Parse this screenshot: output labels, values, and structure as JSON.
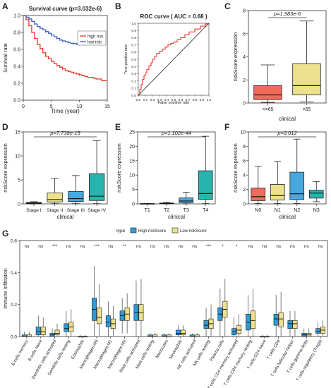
{
  "chart_data": [
    {
      "panel": "A",
      "type": "line",
      "title": "Survival curve (p=3.032e-6)",
      "xlabel": "Time (year)",
      "ylabel": "Survival rate",
      "xlim": [
        0,
        15
      ],
      "ylim": [
        0,
        1
      ],
      "xticks": [
        "0",
        "5",
        "10",
        "15"
      ],
      "yticks": [
        "0.0",
        "0.2",
        "0.4",
        "0.6",
        "0.8",
        "1.0"
      ],
      "legend": "top-right",
      "series": [
        {
          "name": "high risk",
          "color": "#e8392a",
          "x": [
            0,
            0.5,
            1,
            1.5,
            2,
            2.5,
            3,
            3.5,
            4,
            4.5,
            5,
            5.5,
            6,
            6.5,
            7,
            7.5,
            8,
            8.5,
            9,
            9.5,
            10,
            10.5,
            11,
            11.5,
            12,
            12.5,
            13,
            13.5,
            14,
            14.5,
            15
          ],
          "y": [
            1.0,
            0.95,
            0.88,
            0.8,
            0.73,
            0.66,
            0.61,
            0.56,
            0.52,
            0.49,
            0.46,
            0.43,
            0.41,
            0.39,
            0.37,
            0.35,
            0.34,
            0.33,
            0.32,
            0.31,
            0.3,
            0.29,
            0.28,
            0.27,
            0.27,
            0.26,
            0.25,
            0.25,
            0.23,
            0.23,
            0.23
          ]
        },
        {
          "name": "low risk",
          "color": "#3a5fbf",
          "x": [
            0,
            0.5,
            1,
            1.5,
            2,
            2.5,
            3,
            3.5,
            4,
            4.5,
            5,
            5.5,
            6,
            6.5,
            7,
            7.5,
            8,
            8.5,
            9,
            9.5,
            10
          ],
          "y": [
            1.0,
            0.98,
            0.96,
            0.93,
            0.9,
            0.87,
            0.85,
            0.83,
            0.81,
            0.79,
            0.77,
            0.75,
            0.73,
            0.71,
            0.7,
            0.69,
            0.68,
            0.67,
            0.67,
            0.66,
            0.66
          ]
        }
      ]
    },
    {
      "panel": "B",
      "type": "line",
      "title": "ROC curve ( AUC = 0.68 )",
      "xlabel": "False positive rate",
      "ylabel": "True positive rate",
      "xlim": [
        0,
        1
      ],
      "ylim": [
        0,
        1
      ],
      "xticks": [
        "0.0",
        "0.1",
        "0.2",
        "0.3",
        "0.4",
        "0.5",
        "0.6",
        "0.7",
        "0.8",
        "0.9",
        "1.0"
      ],
      "yticks": [
        "0.0",
        "0.1",
        "0.2",
        "0.3",
        "0.4",
        "0.5",
        "0.6",
        "0.7",
        "0.8",
        "0.9",
        "1.0"
      ],
      "series": [
        {
          "color": "#e8392a",
          "x": [
            0,
            0.02,
            0.04,
            0.06,
            0.08,
            0.1,
            0.12,
            0.15,
            0.18,
            0.2,
            0.23,
            0.26,
            0.3,
            0.34,
            0.38,
            0.42,
            0.46,
            0.5,
            0.55,
            0.6,
            0.66,
            0.72,
            0.8,
            0.88,
            0.95,
            1.0
          ],
          "y": [
            0,
            0.08,
            0.15,
            0.22,
            0.27,
            0.31,
            0.36,
            0.41,
            0.45,
            0.5,
            0.54,
            0.58,
            0.61,
            0.64,
            0.67,
            0.7,
            0.72,
            0.74,
            0.77,
            0.8,
            0.84,
            0.88,
            0.92,
            0.96,
            0.99,
            1.0
          ]
        },
        {
          "color": "#222222",
          "x": [
            0,
            1
          ],
          "y": [
            0,
            1
          ]
        }
      ]
    },
    {
      "panel": "C",
      "type": "box",
      "pvalue": "p=1.983e-6",
      "xlabel": "clinical",
      "ylabel": "riskScore expression",
      "ylim": [
        0,
        8
      ],
      "yticks": [
        "0",
        "2",
        "4",
        "6",
        "8"
      ],
      "categories": [
        "<=65",
        ">65"
      ],
      "colors": [
        "#f06b5c",
        "#ede18e"
      ],
      "boxes": [
        {
          "whislo": 0.05,
          "q1": 0.3,
          "med": 0.7,
          "q3": 1.5,
          "whishi": 3.3
        },
        {
          "whislo": 0.1,
          "q1": 0.7,
          "med": 1.5,
          "q3": 3.4,
          "whishi": 7.1
        }
      ]
    },
    {
      "panel": "D",
      "type": "box",
      "pvalue": "p=7.738e-15",
      "xlabel": "clinical",
      "ylabel": "riskScore expression",
      "ylim": [
        0,
        15
      ],
      "yticks": [
        "0",
        "5",
        "10",
        "15"
      ],
      "categories": [
        "Stage I",
        "Stage II",
        "Stage III",
        "Stage IV"
      ],
      "colors": [
        "#f06b5c",
        "#ede18e",
        "#49a7df",
        "#26b5ad"
      ],
      "boxes": [
        {
          "whislo": 0.0,
          "q1": 0.05,
          "med": 0.15,
          "q3": 0.3,
          "whishi": 0.45
        },
        {
          "whislo": 0.05,
          "q1": 0.4,
          "med": 0.9,
          "q3": 2.3,
          "whishi": 5.3
        },
        {
          "whislo": 0.05,
          "q1": 0.5,
          "med": 1.1,
          "q3": 2.6,
          "whishi": 5.9
        },
        {
          "whislo": 0.05,
          "q1": 0.7,
          "med": 1.6,
          "q3": 6.3,
          "whishi": 13.2
        }
      ]
    },
    {
      "panel": "E",
      "type": "box",
      "pvalue": "p=1.102e-44",
      "xlabel": "clinical",
      "ylabel": "riskScore expression",
      "ylim": [
        0,
        25
      ],
      "yticks": [
        "0",
        "5",
        "10",
        "15",
        "20",
        "25"
      ],
      "categories": [
        "T1",
        "T2",
        "T3",
        "T4"
      ],
      "colors": [
        "#f06b5c",
        "#ede18e",
        "#49a7df",
        "#26b5ad"
      ],
      "boxes": [
        {
          "whislo": 0.0,
          "q1": 0.02,
          "med": 0.05,
          "q3": 0.1,
          "whishi": 0.18
        },
        {
          "whislo": 0.0,
          "q1": 0.05,
          "med": 0.12,
          "q3": 0.3,
          "whishi": 0.55
        },
        {
          "whislo": 0.05,
          "q1": 0.4,
          "med": 1.0,
          "q3": 2.1,
          "whishi": 4.0
        },
        {
          "whislo": 0.1,
          "q1": 1.6,
          "med": 3.6,
          "q3": 11.5,
          "whishi": 23.5
        }
      ]
    },
    {
      "panel": "F",
      "type": "box",
      "pvalue": "p=0.012",
      "xlabel": "clinical",
      "ylabel": "riskScore expression",
      "ylim": [
        0,
        10
      ],
      "yticks": [
        "0",
        "2",
        "4",
        "6",
        "8",
        "10"
      ],
      "categories": [
        "N0",
        "N1",
        "N2",
        "N3"
      ],
      "colors": [
        "#f06b5c",
        "#ede18e",
        "#49a7df",
        "#26b5ad"
      ],
      "boxes": [
        {
          "whislo": 0.05,
          "q1": 0.45,
          "med": 1.0,
          "q3": 2.2,
          "whishi": 5.2
        },
        {
          "whislo": 0.05,
          "q1": 0.55,
          "med": 1.15,
          "q3": 2.7,
          "whishi": 5.9
        },
        {
          "whislo": 0.05,
          "q1": 0.6,
          "med": 1.4,
          "q3": 4.4,
          "whishi": 9.0
        },
        {
          "whislo": 0.3,
          "q1": 0.8,
          "med": 1.5,
          "q3": 1.9,
          "whishi": 3.1
        }
      ]
    },
    {
      "panel": "G",
      "type": "box",
      "ylabel": "Immune Infiltration",
      "ylim": [
        0,
        0.6
      ],
      "yticks": [
        "0.0",
        "0.2",
        "0.4",
        "0.6"
      ],
      "legend_title": "type",
      "series_names": [
        "High riskScore",
        "Low riskScore"
      ],
      "colors": [
        "#2f9ad6",
        "#ede18e"
      ],
      "categories": [
        "B cells memory",
        "B cells naive",
        "Dendritic cells activated",
        "Dendritic cells resting",
        "Eosinophils",
        "Macrophages M0",
        "Macrophages M1",
        "Macrophages M2",
        "Mast cells activated",
        "Mast cells resting",
        "Monocytes",
        "Neutrophils",
        "NK cells activated",
        "NK cells resting",
        "Plasma cells",
        "T cells CD4 memory activated",
        "T cells CD4 memory resting",
        "T cells CD4 naive",
        "T cells CD8",
        "T cells follicular helper",
        "T cells gamma delta",
        "T cells regulatory (Tregs)"
      ],
      "significance": [
        "ns",
        "ns",
        "***",
        "ns",
        "ns",
        "***",
        "ns",
        "**",
        "ns",
        "ns",
        "ns",
        "ns",
        "ns",
        "***",
        "*",
        "*",
        "ns",
        "ns",
        "ns",
        "ns",
        "ns",
        "ns"
      ],
      "boxes_high": [
        {
          "whislo": 0,
          "q1": 0.0,
          "med": 0.0,
          "q3": 0.01,
          "whishi": 0.03
        },
        {
          "whislo": 0,
          "q1": 0.01,
          "med": 0.03,
          "q3": 0.06,
          "whishi": 0.13
        },
        {
          "whislo": 0,
          "q1": 0.0,
          "med": 0.01,
          "q3": 0.02,
          "whishi": 0.05
        },
        {
          "whislo": 0,
          "q1": 0.03,
          "med": 0.05,
          "q3": 0.08,
          "whishi": 0.16
        },
        {
          "whislo": 0,
          "q1": 0.0,
          "med": 0.0,
          "q3": 0.0,
          "whishi": 0.01
        },
        {
          "whislo": 0,
          "q1": 0.1,
          "med": 0.17,
          "q3": 0.24,
          "whishi": 0.44
        },
        {
          "whislo": 0,
          "q1": 0.06,
          "med": 0.09,
          "q3": 0.13,
          "whishi": 0.22
        },
        {
          "whislo": 0.02,
          "q1": 0.1,
          "med": 0.13,
          "q3": 0.16,
          "whishi": 0.24
        },
        {
          "whislo": 0,
          "q1": 0.1,
          "med": 0.15,
          "q3": 0.2,
          "whishi": 0.35
        },
        {
          "whislo": 0,
          "q1": 0.0,
          "med": 0.0,
          "q3": 0.01,
          "whishi": 0.02
        },
        {
          "whislo": 0,
          "q1": 0.0,
          "med": 0.0,
          "q3": 0.01,
          "whishi": 0.02
        },
        {
          "whislo": 0,
          "q1": 0.01,
          "med": 0.02,
          "q3": 0.04,
          "whishi": 0.07
        },
        {
          "whislo": 0,
          "q1": 0.0,
          "med": 0.0,
          "q3": 0.01,
          "whishi": 0.02
        },
        {
          "whislo": 0,
          "q1": 0.05,
          "med": 0.07,
          "q3": 0.1,
          "whishi": 0.18
        },
        {
          "whislo": 0,
          "q1": 0.1,
          "med": 0.14,
          "q3": 0.18,
          "whishi": 0.3
        },
        {
          "whislo": 0,
          "q1": 0.01,
          "med": 0.03,
          "q3": 0.05,
          "whishi": 0.12
        },
        {
          "whislo": 0,
          "q1": 0.04,
          "med": 0.09,
          "q3": 0.14,
          "whishi": 0.26
        },
        {
          "whislo": 0,
          "q1": 0.0,
          "med": 0.0,
          "q3": 0.0,
          "whishi": 0.01
        },
        {
          "whislo": 0,
          "q1": 0.07,
          "med": 0.11,
          "q3": 0.14,
          "whishi": 0.26
        },
        {
          "whislo": 0,
          "q1": 0.05,
          "med": 0.08,
          "q3": 0.1,
          "whishi": 0.16
        },
        {
          "whislo": 0,
          "q1": 0.0,
          "med": 0.01,
          "q3": 0.02,
          "whishi": 0.05
        },
        {
          "whislo": 0,
          "q1": 0.02,
          "med": 0.03,
          "q3": 0.05,
          "whishi": 0.09
        }
      ],
      "boxes_low": [
        {
          "whislo": 0,
          "q1": 0.0,
          "med": 0.0,
          "q3": 0.01,
          "whishi": 0.03
        },
        {
          "whislo": 0,
          "q1": 0.01,
          "med": 0.03,
          "q3": 0.06,
          "whishi": 0.12
        },
        {
          "whislo": 0,
          "q1": 0.01,
          "med": 0.02,
          "q3": 0.04,
          "whishi": 0.08
        },
        {
          "whislo": 0,
          "q1": 0.03,
          "med": 0.06,
          "q3": 0.09,
          "whishi": 0.17
        },
        {
          "whislo": 0,
          "q1": 0.0,
          "med": 0.0,
          "q3": 0.0,
          "whishi": 0.01
        },
        {
          "whislo": 0,
          "q1": 0.08,
          "med": 0.12,
          "q3": 0.18,
          "whishi": 0.33
        },
        {
          "whislo": 0,
          "q1": 0.05,
          "med": 0.08,
          "q3": 0.11,
          "whishi": 0.19
        },
        {
          "whislo": 0.02,
          "q1": 0.1,
          "med": 0.14,
          "q3": 0.18,
          "whishi": 0.27
        },
        {
          "whislo": 0,
          "q1": 0.1,
          "med": 0.15,
          "q3": 0.2,
          "whishi": 0.36
        },
        {
          "whislo": 0,
          "q1": 0.0,
          "med": 0.0,
          "q3": 0.01,
          "whishi": 0.02
        },
        {
          "whislo": 0,
          "q1": 0.0,
          "med": 0.0,
          "q3": 0.01,
          "whishi": 0.02
        },
        {
          "whislo": 0,
          "q1": 0.01,
          "med": 0.02,
          "q3": 0.04,
          "whishi": 0.07
        },
        {
          "whislo": 0,
          "q1": 0.0,
          "med": 0.0,
          "q3": 0.01,
          "whishi": 0.02
        },
        {
          "whislo": 0,
          "q1": 0.05,
          "med": 0.08,
          "q3": 0.11,
          "whishi": 0.2
        },
        {
          "whislo": 0,
          "q1": 0.12,
          "med": 0.17,
          "q3": 0.22,
          "whishi": 0.36
        },
        {
          "whislo": 0,
          "q1": 0.02,
          "med": 0.04,
          "q3": 0.07,
          "whishi": 0.14
        },
        {
          "whislo": 0,
          "q1": 0.05,
          "med": 0.1,
          "q3": 0.16,
          "whishi": 0.3
        },
        {
          "whislo": 0,
          "q1": 0.0,
          "med": 0.0,
          "q3": 0.0,
          "whishi": 0.01
        },
        {
          "whislo": 0,
          "q1": 0.06,
          "med": 0.11,
          "q3": 0.15,
          "whishi": 0.28
        },
        {
          "whislo": 0,
          "q1": 0.05,
          "med": 0.08,
          "q3": 0.1,
          "whishi": 0.16
        },
        {
          "whislo": 0,
          "q1": 0.0,
          "med": 0.01,
          "q3": 0.02,
          "whishi": 0.05
        },
        {
          "whislo": 0,
          "q1": 0.02,
          "med": 0.04,
          "q3": 0.06,
          "whishi": 0.1
        }
      ]
    }
  ]
}
